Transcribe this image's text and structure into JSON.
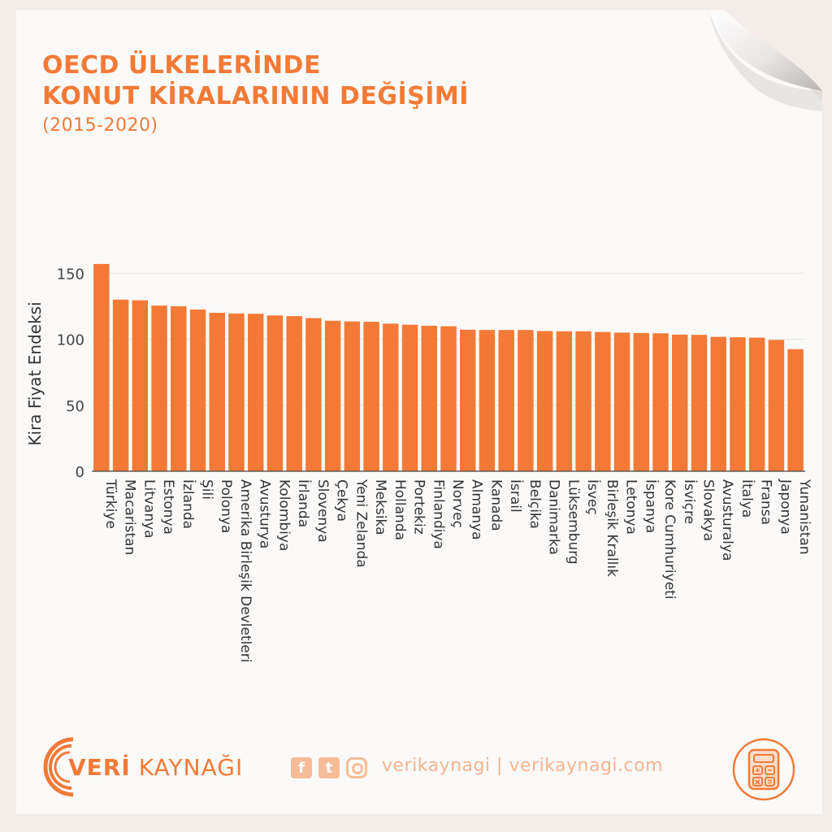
{
  "header": {
    "title_line1": "OECD ÜLKELERİNDE",
    "title_line2": "KONUT KİRALARININ DEĞİŞİMİ",
    "subtitle": "(2015-2020)"
  },
  "chart_data": {
    "type": "bar",
    "ylabel": "Kira Fiyat Endeksi",
    "xlabel": "",
    "ylim": [
      0,
      160
    ],
    "yticks": [
      0,
      50,
      100,
      150
    ],
    "grid": true,
    "bar_color": "#f37a36",
    "categories": [
      "Türkiye",
      "Macaristan",
      "Litvanya",
      "Estonya",
      "İzlanda",
      "Şili",
      "Polonya",
      "Amerika Birleşik Devletleri",
      "Avusturya",
      "Kolombiya",
      "İrlanda",
      "Slovenya",
      "Çekya",
      "Yeni Zelanda",
      "Meksika",
      "Hollanda",
      "Portekiz",
      "Finlandiya",
      "Norveç",
      "Almanya",
      "Kanada",
      "İsrail",
      "Belçika",
      "Danimarka",
      "Lüksemburg",
      "İsveç",
      "Birleşik Krallık",
      "Letonya",
      "İspanya",
      "Kore Cumhuriyeti",
      "İsviçre",
      "Slovakya",
      "Avusturalya",
      "İtalya",
      "Fransa",
      "Japonya",
      "Yunanistan"
    ],
    "values": [
      157,
      130,
      129.5,
      125.5,
      125,
      122.5,
      120,
      119.5,
      119.3,
      118,
      117.5,
      116,
      114,
      113.5,
      113.2,
      111.8,
      111,
      110.2,
      109.8,
      107.2,
      107,
      107,
      107,
      106.2,
      106,
      106,
      105.5,
      105,
      104.7,
      104.5,
      103.5,
      103.3,
      101.8,
      101.5,
      101.2,
      99.5,
      92.5
    ]
  },
  "footer": {
    "brand_bold": "VERİ",
    "brand_light": "KAYNAĞI",
    "social_facebook": "f",
    "social_twitter": "t",
    "handle": "verikaynagi | verikaynagi.com",
    "icon": "calculator-icon"
  }
}
